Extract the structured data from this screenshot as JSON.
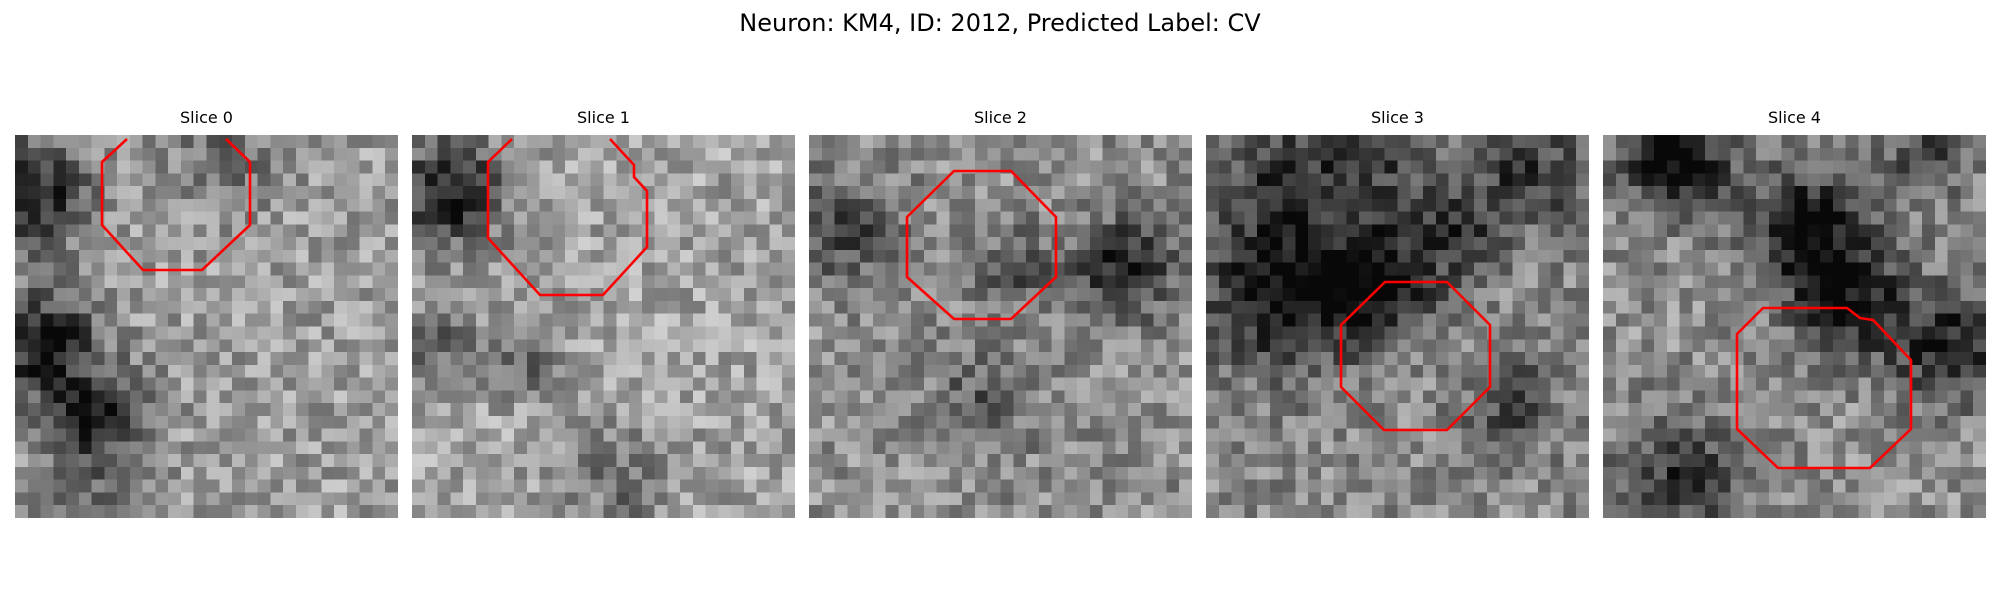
{
  "figure": {
    "title": "Neuron: KM4, ID: 2012, Predicted Label: CV"
  },
  "panels": [
    {
      "title": "Slice 0"
    },
    {
      "title": "Slice 1"
    },
    {
      "title": "Slice 2"
    },
    {
      "title": "Slice 3"
    },
    {
      "title": "Slice 4"
    }
  ],
  "colors": {
    "background": "#ffffff",
    "contour": "#ff0000",
    "text": "#000000"
  }
}
